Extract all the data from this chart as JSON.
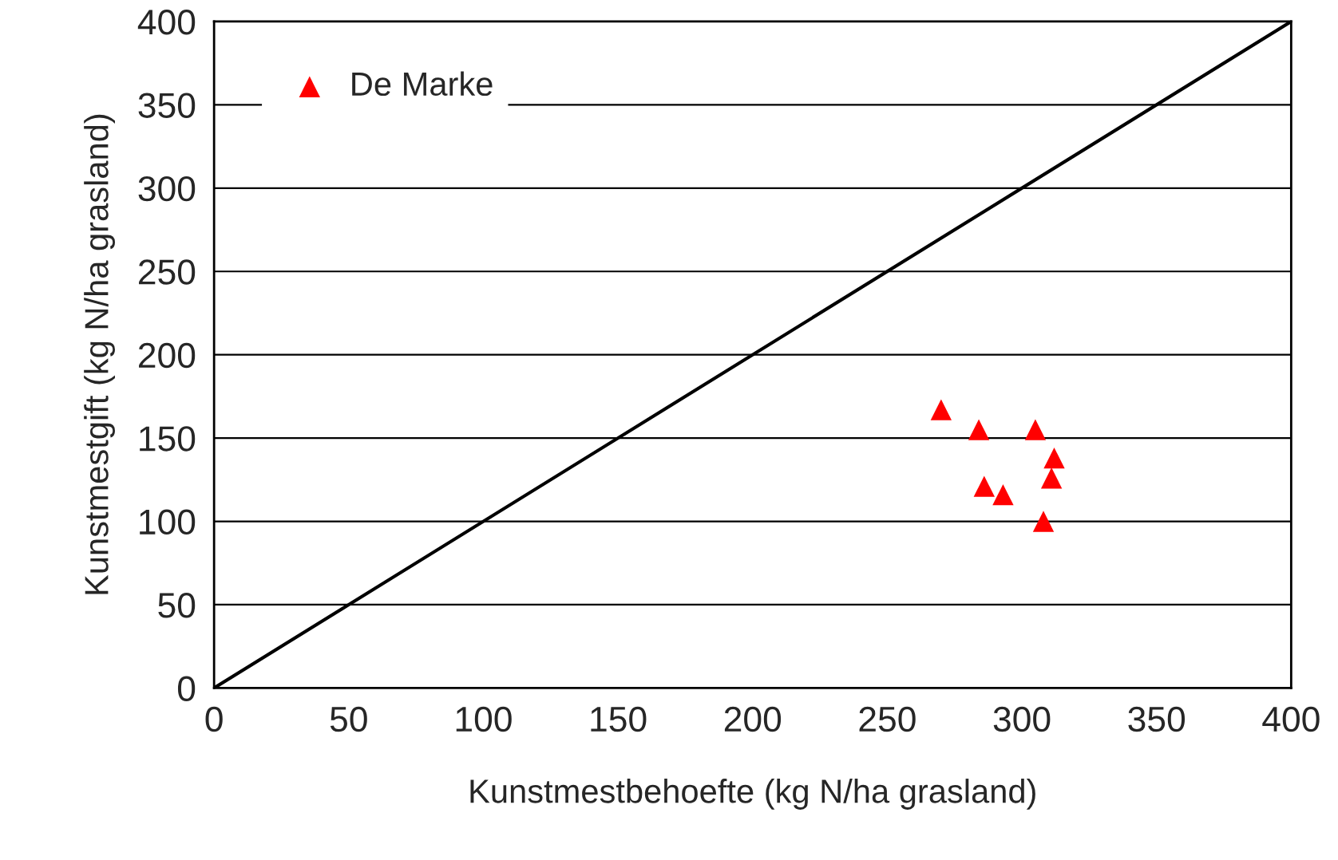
{
  "chart_data": {
    "type": "scatter",
    "xlabel": "Kunstmestbehoefte (kg N/ha grasland)",
    "ylabel": "Kunstmestgift (kg N/ha grasland)",
    "xlim": [
      0,
      400
    ],
    "ylim": [
      0,
      400
    ],
    "xticks": [
      0,
      50,
      100,
      150,
      200,
      250,
      300,
      350,
      400
    ],
    "yticks": [
      0,
      50,
      100,
      150,
      200,
      250,
      300,
      350,
      400
    ],
    "grid": "y",
    "legend": "top left",
    "marker": "triangle",
    "series": [
      {
        "name": "De Marke",
        "color": "#ff0000",
        "x": [
          270,
          284,
          305,
          312,
          286,
          293,
          311,
          308
        ],
        "values": [
          167,
          155,
          155,
          138,
          121,
          116,
          126,
          100
        ]
      },
      {
        "type": "line",
        "color": "#000000",
        "x": [
          0,
          400
        ],
        "values": [
          0,
          400
        ],
        "marker": "none",
        "line_style": "solid"
      }
    ]
  }
}
